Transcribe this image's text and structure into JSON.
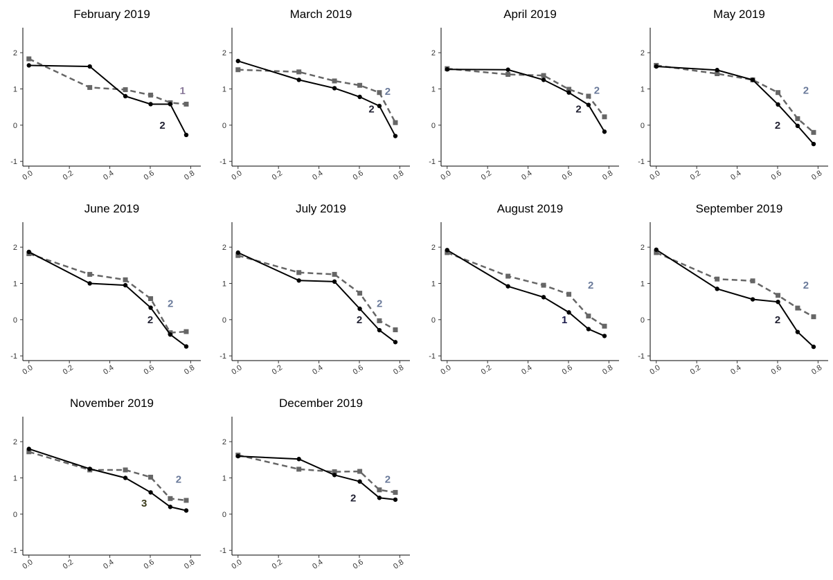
{
  "chart_data": [
    {
      "type": "line",
      "title": "February 2019",
      "x": [
        0,
        0.301,
        0.477,
        0.602,
        0.699,
        0.778
      ],
      "series": [
        {
          "color": "#000000",
          "dash": false,
          "marker": "circle",
          "values": [
            1.65,
            1.62,
            0.8,
            0.58,
            0.58,
            -0.27
          ]
        },
        {
          "color": "#666666",
          "dash": true,
          "marker": "square",
          "values": [
            1.83,
            1.04,
            0.98,
            0.83,
            0.62,
            0.58
          ]
        }
      ],
      "annotations": [
        {
          "text": "1",
          "x": 0.76,
          "y": 0.95,
          "color": "#8a7a9a"
        },
        {
          "text": "2",
          "x": 0.66,
          "y": 0,
          "color": "#222233"
        }
      ],
      "xlim": [
        -0.03,
        0.85
      ],
      "ylim": [
        -1.13,
        2.69
      ],
      "xticks": [
        {
          "value": 0,
          "label": "0.0"
        },
        0.2,
        0.4,
        0.6,
        0.8
      ],
      "yticks": [
        -1,
        0,
        1,
        2
      ]
    },
    {
      "type": "line",
      "title": "March 2019",
      "x": [
        0,
        0.301,
        0.477,
        0.602,
        0.699,
        0.778
      ],
      "series": [
        {
          "color": "#000000",
          "dash": false,
          "marker": "circle",
          "values": [
            1.77,
            1.25,
            1.02,
            0.78,
            0.53,
            -0.3
          ]
        },
        {
          "color": "#666666",
          "dash": true,
          "marker": "square",
          "values": [
            1.53,
            1.47,
            1.22,
            1.1,
            0.9,
            0.07
          ]
        }
      ],
      "annotations": [
        {
          "text": "2",
          "x": 0.74,
          "y": 0.93,
          "color": "#6a7a9a"
        },
        {
          "text": "2",
          "x": 0.66,
          "y": 0.45,
          "color": "#222233"
        }
      ],
      "xlim": [
        -0.03,
        0.85
      ],
      "ylim": [
        -1.13,
        2.69
      ],
      "xticks": [
        {
          "value": 0,
          "label": "0.0"
        },
        0.2,
        0.4,
        0.6,
        0.8
      ],
      "yticks": [
        -1,
        0,
        1,
        2
      ]
    },
    {
      "type": "line",
      "title": "April 2019",
      "x": [
        0,
        0.301,
        0.477,
        0.602,
        0.699,
        0.778
      ],
      "series": [
        {
          "color": "#000000",
          "dash": false,
          "marker": "circle",
          "values": [
            1.54,
            1.53,
            1.25,
            0.9,
            0.56,
            -0.18
          ]
        },
        {
          "color": "#666666",
          "dash": true,
          "marker": "square",
          "values": [
            1.56,
            1.4,
            1.37,
            0.99,
            0.8,
            0.23
          ]
        }
      ],
      "annotations": [
        {
          "text": "2",
          "x": 0.74,
          "y": 0.96,
          "color": "#6a7a9a"
        },
        {
          "text": "2",
          "x": 0.65,
          "y": 0.45,
          "color": "#222233"
        }
      ],
      "xlim": [
        -0.03,
        0.85
      ],
      "ylim": [
        -1.13,
        2.69
      ],
      "xticks": [
        {
          "value": 0,
          "label": "0.0"
        },
        0.2,
        0.4,
        0.6,
        0.8
      ],
      "yticks": [
        -1,
        0,
        1,
        2
      ]
    },
    {
      "type": "line",
      "title": "May 2019",
      "x": [
        0,
        0.301,
        0.477,
        0.602,
        0.699,
        0.778
      ],
      "series": [
        {
          "color": "#000000",
          "dash": false,
          "marker": "circle",
          "values": [
            1.62,
            1.52,
            1.25,
            0.57,
            -0.02,
            -0.52
          ]
        },
        {
          "color": "#666666",
          "dash": true,
          "marker": "square",
          "values": [
            1.65,
            1.42,
            1.25,
            0.9,
            0.18,
            -0.2
          ]
        }
      ],
      "annotations": [
        {
          "text": "2",
          "x": 0.74,
          "y": 0.96,
          "color": "#6a7a9a"
        },
        {
          "text": "2",
          "x": 0.6,
          "y": 0,
          "color": "#222233"
        }
      ],
      "xlim": [
        -0.03,
        0.85
      ],
      "ylim": [
        -1.13,
        2.69
      ],
      "xticks": [
        {
          "value": 0,
          "label": "0.0"
        },
        0.2,
        0.4,
        0.6,
        0.8
      ],
      "yticks": [
        -1,
        0,
        1,
        2
      ]
    },
    {
      "type": "line",
      "title": "June 2019",
      "x": [
        0,
        0.301,
        0.477,
        0.602,
        0.699,
        0.778
      ],
      "series": [
        {
          "color": "#000000",
          "dash": false,
          "marker": "circle",
          "values": [
            1.87,
            1.0,
            0.95,
            0.33,
            -0.41,
            -0.74
          ]
        },
        {
          "color": "#666666",
          "dash": true,
          "marker": "square",
          "values": [
            1.82,
            1.25,
            1.1,
            0.58,
            -0.36,
            -0.33
          ]
        }
      ],
      "annotations": [
        {
          "text": "2",
          "x": 0.7,
          "y": 0.45,
          "color": "#6a7a9a"
        },
        {
          "text": "2",
          "x": 0.6,
          "y": 0,
          "color": "#222233"
        }
      ],
      "xlim": [
        -0.03,
        0.85
      ],
      "ylim": [
        -1.13,
        2.69
      ],
      "xticks": [
        {
          "value": 0,
          "label": "0.0"
        },
        0.2,
        0.4,
        0.6,
        0.8
      ],
      "yticks": [
        -1,
        0,
        1,
        2
      ]
    },
    {
      "type": "line",
      "title": "July 2019",
      "x": [
        0,
        0.301,
        0.477,
        0.602,
        0.699,
        0.778
      ],
      "series": [
        {
          "color": "#000000",
          "dash": false,
          "marker": "circle",
          "values": [
            1.85,
            1.08,
            1.05,
            0.3,
            -0.29,
            -0.62
          ]
        },
        {
          "color": "#666666",
          "dash": true,
          "marker": "square",
          "values": [
            1.77,
            1.3,
            1.25,
            0.73,
            -0.03,
            -0.28
          ]
        }
      ],
      "annotations": [
        {
          "text": "2",
          "x": 0.7,
          "y": 0.45,
          "color": "#6a7a9a"
        },
        {
          "text": "2",
          "x": 0.6,
          "y": 0,
          "color": "#222233"
        }
      ],
      "xlim": [
        -0.03,
        0.85
      ],
      "ylim": [
        -1.13,
        2.69
      ],
      "xticks": [
        {
          "value": 0,
          "label": "0.0"
        },
        0.2,
        0.4,
        0.6,
        0.8
      ],
      "yticks": [
        -1,
        0,
        1,
        2
      ]
    },
    {
      "type": "line",
      "title": "August 2019",
      "x": [
        0,
        0.301,
        0.477,
        0.602,
        0.699,
        0.778
      ],
      "series": [
        {
          "color": "#000000",
          "dash": false,
          "marker": "circle",
          "values": [
            1.92,
            0.92,
            0.62,
            0.2,
            -0.26,
            -0.45
          ]
        },
        {
          "color": "#666666",
          "dash": true,
          "marker": "square",
          "values": [
            1.85,
            1.2,
            0.95,
            0.7,
            0.1,
            -0.18
          ]
        }
      ],
      "annotations": [
        {
          "text": "2",
          "x": 0.71,
          "y": 0.95,
          "color": "#6a7a9a"
        },
        {
          "text": "1",
          "x": 0.58,
          "y": 0,
          "color": "#1a1a4a"
        }
      ],
      "xlim": [
        -0.03,
        0.85
      ],
      "ylim": [
        -1.13,
        2.69
      ],
      "xticks": [
        {
          "value": 0,
          "label": "0.0"
        },
        0.2,
        0.4,
        0.6,
        0.8
      ],
      "yticks": [
        -1,
        0,
        1,
        2
      ]
    },
    {
      "type": "line",
      "title": "September 2019",
      "x": [
        0,
        0.301,
        0.477,
        0.602,
        0.699,
        0.778
      ],
      "series": [
        {
          "color": "#000000",
          "dash": false,
          "marker": "circle",
          "values": [
            1.93,
            0.85,
            0.56,
            0.49,
            -0.34,
            -0.75
          ]
        },
        {
          "color": "#666666",
          "dash": true,
          "marker": "square",
          "values": [
            1.85,
            1.12,
            1.07,
            0.67,
            0.32,
            0.08
          ]
        }
      ],
      "annotations": [
        {
          "text": "2",
          "x": 0.74,
          "y": 0.95,
          "color": "#6a7a9a"
        },
        {
          "text": "2",
          "x": 0.6,
          "y": 0,
          "color": "#222233"
        }
      ],
      "xlim": [
        -0.03,
        0.85
      ],
      "ylim": [
        -1.13,
        2.69
      ],
      "xticks": [
        {
          "value": 0,
          "label": "0.0"
        },
        0.2,
        0.4,
        0.6,
        0.8
      ],
      "yticks": [
        -1,
        0,
        1,
        2
      ]
    },
    {
      "type": "line",
      "title": "November 2019",
      "x": [
        0,
        0.301,
        0.477,
        0.602,
        0.699,
        0.778
      ],
      "series": [
        {
          "color": "#000000",
          "dash": false,
          "marker": "circle",
          "values": [
            1.8,
            1.25,
            1.0,
            0.6,
            0.2,
            0.1
          ]
        },
        {
          "color": "#666666",
          "dash": true,
          "marker": "square",
          "values": [
            1.72,
            1.22,
            1.22,
            1.02,
            0.43,
            0.38
          ]
        }
      ],
      "annotations": [
        {
          "text": "2",
          "x": 0.74,
          "y": 0.96,
          "color": "#6a7a9a"
        },
        {
          "text": "3",
          "x": 0.57,
          "y": 0.3,
          "color": "#3a3a1a"
        }
      ],
      "xlim": [
        -0.03,
        0.85
      ],
      "ylim": [
        -1.13,
        2.69
      ],
      "xticks": [
        {
          "value": 0,
          "label": "0.0"
        },
        0.2,
        0.4,
        0.6,
        0.8
      ],
      "yticks": [
        -1,
        0,
        1,
        2
      ]
    },
    {
      "type": "line",
      "title": "December 2019",
      "x": [
        0,
        0.301,
        0.477,
        0.602,
        0.699,
        0.778
      ],
      "series": [
        {
          "color": "#000000",
          "dash": false,
          "marker": "circle",
          "values": [
            1.6,
            1.52,
            1.08,
            0.9,
            0.45,
            0.4
          ]
        },
        {
          "color": "#666666",
          "dash": true,
          "marker": "square",
          "values": [
            1.63,
            1.24,
            1.17,
            1.18,
            0.67,
            0.6
          ]
        }
      ],
      "annotations": [
        {
          "text": "2",
          "x": 0.74,
          "y": 0.96,
          "color": "#6a7a9a"
        },
        {
          "text": "2",
          "x": 0.57,
          "y": 0.45,
          "color": "#222233"
        }
      ],
      "xlim": [
        -0.03,
        0.85
      ],
      "ylim": [
        -1.13,
        2.69
      ],
      "xticks": [
        {
          "value": 0,
          "label": "0.0"
        },
        0.2,
        0.4,
        0.6,
        0.8
      ],
      "yticks": [
        -1,
        0,
        1,
        2
      ]
    }
  ]
}
